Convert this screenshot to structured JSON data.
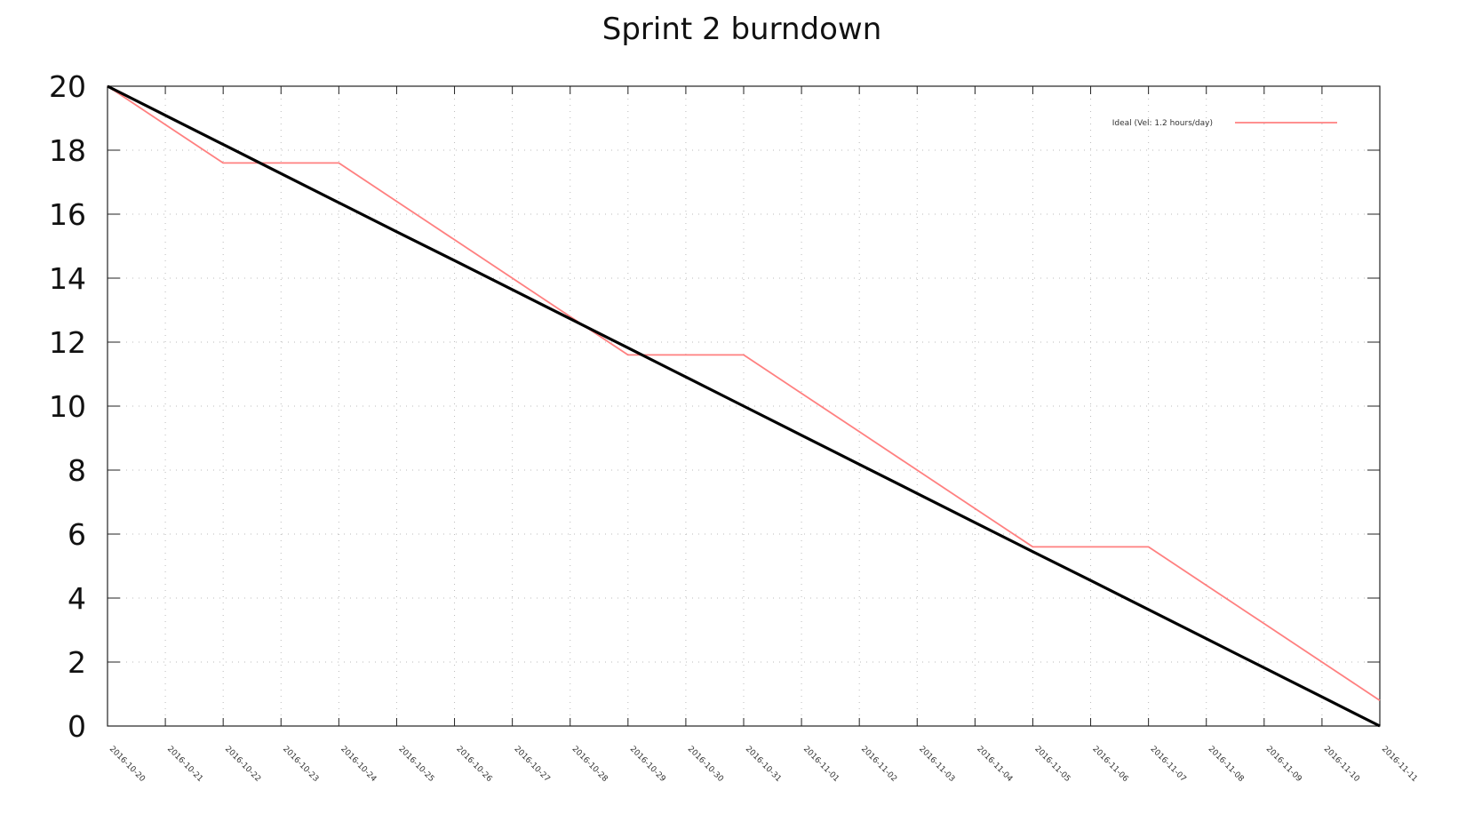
{
  "chart_data": {
    "type": "line",
    "title": "Sprint 2 burndown",
    "xlabel": "",
    "ylabel": "",
    "ylim": [
      0,
      20
    ],
    "yticks": [
      "0",
      "2",
      "4",
      "6",
      "8",
      "10",
      "12",
      "14",
      "16",
      "18",
      "20"
    ],
    "x": [
      "2016-10-20",
      "2016-10-21",
      "2016-10-22",
      "2016-10-23",
      "2016-10-24",
      "2016-10-25",
      "2016-10-26",
      "2016-10-27",
      "2016-10-28",
      "2016-10-29",
      "2016-10-30",
      "2016-10-31",
      "2016-11-01",
      "2016-11-02",
      "2016-11-03",
      "2016-11-04",
      "2016-11-05",
      "2016-11-06",
      "2016-11-07",
      "2016-11-08",
      "2016-11-09",
      "2016-11-10",
      "2016-11-11"
    ],
    "grid": true,
    "legend_position": "top-right",
    "series": [
      {
        "name": "Ideal (Vel: 1.2 hours/day)",
        "color": "#ff8080",
        "values": [
          20.0,
          18.8,
          17.6,
          17.6,
          17.6,
          16.4,
          15.2,
          14.0,
          12.8,
          11.6,
          11.6,
          11.6,
          10.4,
          9.2,
          8.0,
          6.8,
          5.6,
          5.6,
          5.6,
          4.4,
          3.2,
          2.0,
          0.8
        ]
      },
      {
        "color": "#000000",
        "values": [
          20.0,
          19.09,
          18.18,
          17.27,
          16.36,
          15.45,
          14.55,
          13.64,
          12.73,
          11.82,
          10.91,
          10.0,
          9.09,
          8.18,
          7.27,
          6.36,
          5.45,
          4.55,
          3.64,
          2.73,
          1.82,
          0.91,
          0.0
        ]
      }
    ]
  }
}
